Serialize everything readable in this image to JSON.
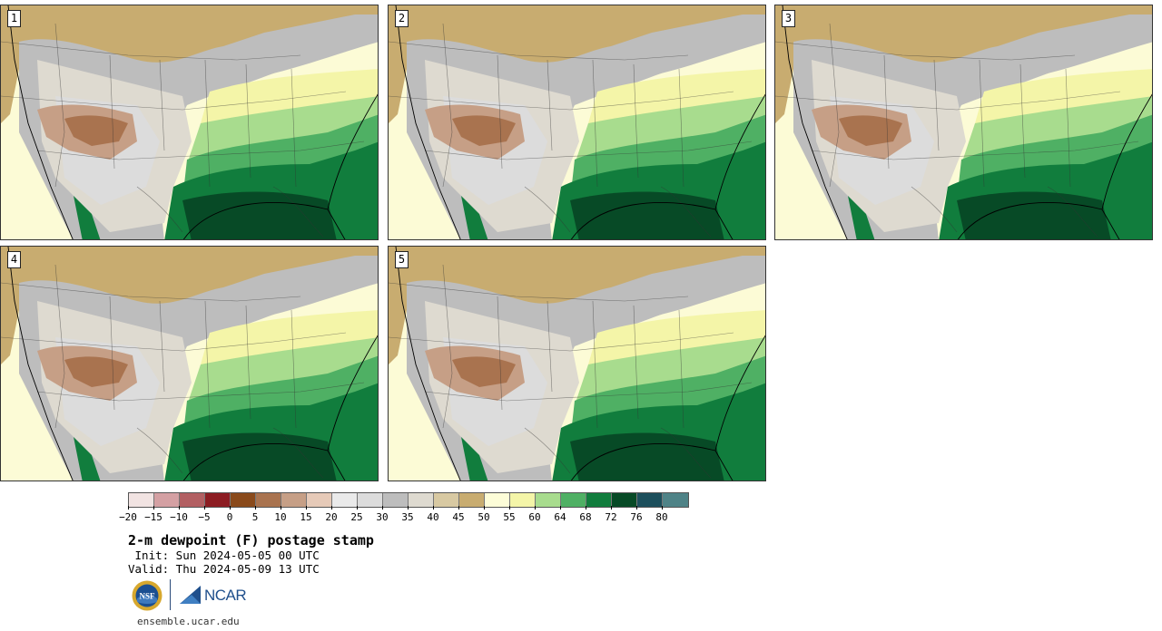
{
  "panels": [
    {
      "number": "1"
    },
    {
      "number": "2"
    },
    {
      "number": "3"
    },
    {
      "number": "4"
    },
    {
      "number": "5"
    }
  ],
  "colorbar": {
    "colors": [
      "#f1e3e2",
      "#d4a0a3",
      "#b25f62",
      "#8c1c22",
      "#8a4a1b",
      "#a9734f",
      "#c69f86",
      "#e6cab8",
      "#eaeaea",
      "#dcdcdc",
      "#bdbdbd",
      "#dedad0",
      "#d8c9a2",
      "#c8ac70",
      "#fdfdd8",
      "#f4f5a8",
      "#a8dc8e",
      "#4fb064",
      "#117d3d",
      "#074a26",
      "#1c4f5c",
      "#4f8387"
    ],
    "tick_labels": [
      "−20",
      "−15",
      "−10",
      "−5",
      "0",
      "5",
      "10",
      "15",
      "20",
      "25",
      "30",
      "35",
      "40",
      "45",
      "50",
      "55",
      "60",
      "64",
      "68",
      "72",
      "76",
      "80"
    ]
  },
  "title": "2-m dewpoint (F) postage stamp",
  "init_line": " Init: Sun 2024-05-05 00 UTC",
  "valid_line": "Valid: Thu 2024-05-09 13 UTC",
  "logos": {
    "nsf": "NSF",
    "ncar": "NCAR"
  },
  "url": "ensemble.ucar.edu"
}
